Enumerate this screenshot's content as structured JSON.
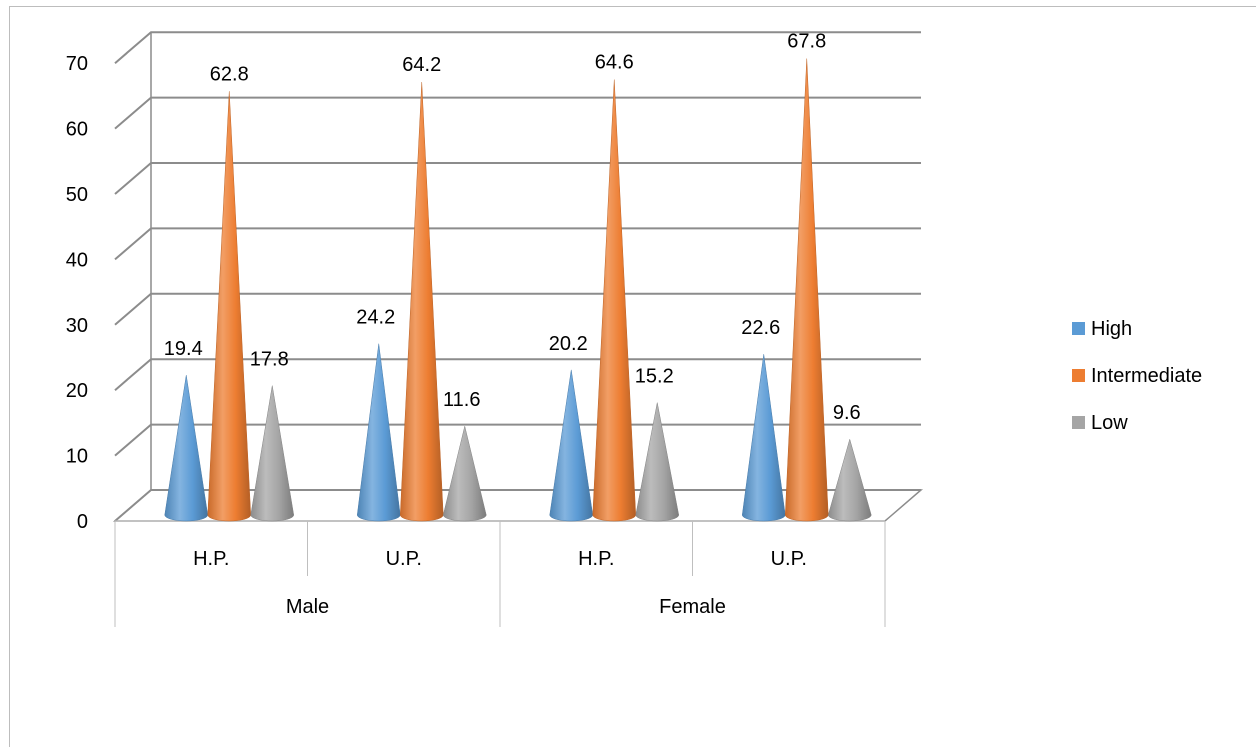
{
  "chart_data": {
    "type": "bar",
    "bar_shape": "3d-cone",
    "categories": [
      {
        "label": "H.P.",
        "group": "Male"
      },
      {
        "label": "U.P.",
        "group": "Male"
      },
      {
        "label": "H.P.",
        "group": "Female"
      },
      {
        "label": "U.P.",
        "group": "Female"
      }
    ],
    "groups": [
      "Male",
      "Female"
    ],
    "series": [
      {
        "name": "High",
        "color": "#5b9bd5",
        "values": [
          19.4,
          24.2,
          20.2,
          22.6
        ]
      },
      {
        "name": "Intermediate",
        "color": "#ed7d31",
        "values": [
          62.8,
          64.2,
          64.6,
          67.8
        ]
      },
      {
        "name": "Low",
        "color": "#a5a5a5",
        "values": [
          17.8,
          11.6,
          15.2,
          9.6
        ]
      }
    ],
    "ylim": [
      0,
      70
    ],
    "y_ticks": [
      0,
      10,
      20,
      30,
      40,
      50,
      60,
      70
    ],
    "grid": true,
    "legend_position": "right"
  }
}
